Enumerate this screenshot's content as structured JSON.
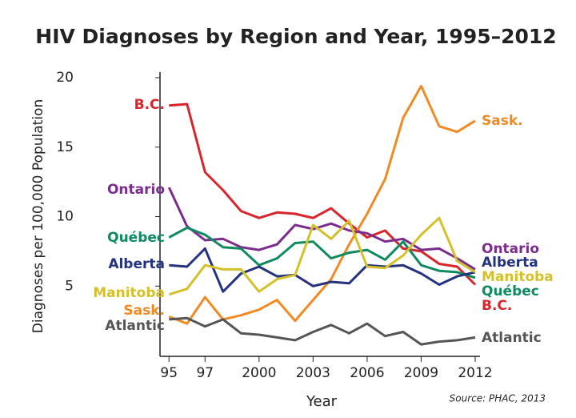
{
  "chart_data": {
    "type": "line",
    "title": "HIV Diagnoses by Region and Year, 1995–2012",
    "x_label": "Year",
    "y_label": "Diagnoses per 100,000 Population",
    "source": "Source: PHAC, 2013",
    "x": [
      1995,
      1996,
      1997,
      1998,
      1999,
      2000,
      2001,
      2002,
      2003,
      2004,
      2005,
      2006,
      2007,
      2008,
      2009,
      2010,
      2011,
      2012
    ],
    "xlim": [
      1994.5,
      2012
    ],
    "xticks": [
      {
        "value": 1995,
        "label": "95"
      },
      {
        "value": 1997,
        "label": "97"
      },
      2000,
      2003,
      2006,
      2009,
      2012
    ],
    "ylim": [
      0,
      20
    ],
    "yticks": [
      5,
      10,
      15,
      20
    ],
    "series": [
      {
        "name": "B.C.",
        "color": "#d7262b",
        "values": [
          18.0,
          18.1,
          13.2,
          11.9,
          10.4,
          9.9,
          10.3,
          10.2,
          9.9,
          10.6,
          9.5,
          8.5,
          9.0,
          7.7,
          7.5,
          6.6,
          6.4,
          5.1
        ]
      },
      {
        "name": "Sask.",
        "color": "#f08a24",
        "values": [
          2.8,
          2.3,
          4.2,
          2.6,
          2.9,
          3.3,
          4.0,
          2.5,
          4.0,
          5.5,
          8.0,
          10.2,
          12.7,
          17.1,
          19.4,
          16.5,
          16.1,
          16.9
        ]
      },
      {
        "name": "Ontario",
        "color": "#7b2d8e",
        "values": [
          12.1,
          9.3,
          8.3,
          8.4,
          7.8,
          7.6,
          8.0,
          9.4,
          9.1,
          9.5,
          9.0,
          8.8,
          8.2,
          8.4,
          7.6,
          7.7,
          7.0,
          6.2
        ]
      },
      {
        "name": "Québec",
        "color": "#0f8a5f",
        "values": [
          8.5,
          9.2,
          8.7,
          7.8,
          7.7,
          6.5,
          7.0,
          8.1,
          8.2,
          7.0,
          7.4,
          7.6,
          6.9,
          8.2,
          6.5,
          6.1,
          6.0,
          5.6
        ]
      },
      {
        "name": "Alberta",
        "color": "#24337f",
        "values": [
          6.5,
          6.4,
          7.7,
          4.6,
          5.9,
          6.4,
          5.7,
          5.8,
          5.0,
          5.3,
          5.2,
          6.5,
          6.4,
          6.5,
          5.9,
          5.1,
          5.7,
          6.0
        ]
      },
      {
        "name": "Manitoba",
        "color": "#d4c02a",
        "values": [
          4.4,
          4.8,
          6.5,
          6.2,
          6.2,
          4.6,
          5.5,
          5.8,
          9.4,
          8.4,
          9.7,
          6.4,
          6.3,
          7.2,
          8.7,
          9.9,
          6.8,
          6.0
        ]
      },
      {
        "name": "Atlantic",
        "color": "#555555",
        "values": [
          2.6,
          2.7,
          2.1,
          2.6,
          1.6,
          1.5,
          1.3,
          1.1,
          1.7,
          2.2,
          1.6,
          2.3,
          1.4,
          1.7,
          0.8,
          1.0,
          1.1,
          1.3
        ]
      }
    ]
  }
}
